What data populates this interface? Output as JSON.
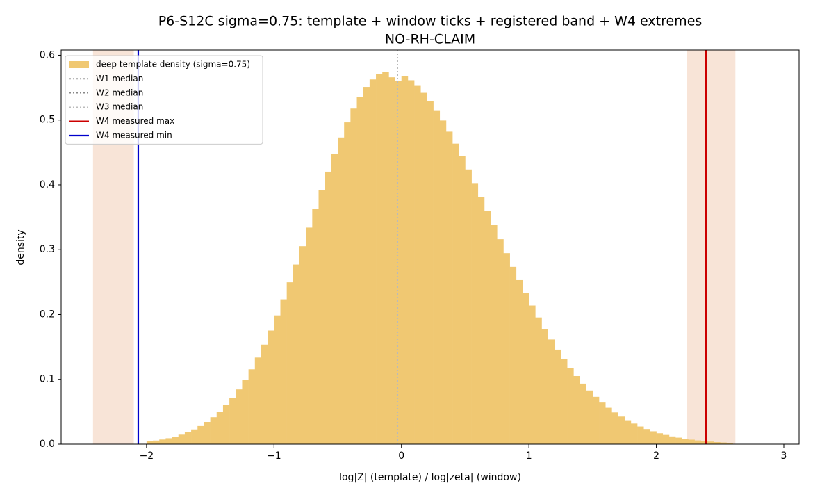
{
  "chart_data": {
    "type": "histogram",
    "title": "P6-S12C sigma=0.75: template + window ticks + registered band + W4 extremes",
    "subtitle": "NO-RH-CLAIM",
    "x_label": "log|Z| (template) / log|zeta| (window)",
    "y_label": "density",
    "name": "deep template density (sigma=0.75)",
    "color": "#f0c872",
    "bins": [
      -2.0,
      -1.95,
      -1.9,
      -1.85,
      -1.8,
      -1.75,
      -1.7,
      -1.65,
      -1.6,
      -1.55,
      -1.5,
      -1.45,
      -1.4,
      -1.35,
      -1.3,
      -1.25,
      -1.2,
      -1.15,
      -1.1,
      -1.05,
      -1.0,
      -0.95,
      -0.9,
      -0.85,
      -0.8,
      -0.75,
      -0.7,
      -0.65,
      -0.6,
      -0.55,
      -0.5,
      -0.45,
      -0.4,
      -0.35,
      -0.3,
      -0.25,
      -0.2,
      -0.15,
      -0.1,
      -0.05,
      0.0,
      0.05,
      0.1,
      0.15,
      0.2,
      0.25,
      0.3,
      0.35,
      0.4,
      0.45,
      0.5,
      0.55,
      0.6,
      0.65,
      0.7,
      0.75,
      0.8,
      0.85,
      0.9,
      0.95,
      1.0,
      1.05,
      1.1,
      1.15,
      1.2,
      1.25,
      1.3,
      1.35,
      1.4,
      1.45,
      1.5,
      1.55,
      1.6,
      1.65,
      1.7,
      1.75,
      1.8,
      1.85,
      1.9,
      1.95,
      2.0,
      2.05,
      2.1,
      2.15,
      2.2,
      2.25,
      2.3,
      2.35,
      2.4,
      2.45,
      2.5,
      2.55,
      2.6
    ],
    "values": [
      0.0044,
      0.0056,
      0.0072,
      0.0092,
      0.0117,
      0.0147,
      0.0183,
      0.0228,
      0.028,
      0.0343,
      0.0416,
      0.0502,
      0.0601,
      0.0715,
      0.0845,
      0.0991,
      0.1155,
      0.1337,
      0.1536,
      0.1753,
      0.1987,
      0.2235,
      0.2497,
      0.2771,
      0.3054,
      0.3341,
      0.3633,
      0.392,
      0.4204,
      0.4474,
      0.4731,
      0.4964,
      0.5177,
      0.536,
      0.5511,
      0.5627,
      0.5705,
      0.5745,
      0.566,
      0.56,
      0.568,
      0.5614,
      0.5527,
      0.542,
      0.5295,
      0.5151,
      0.4993,
      0.4821,
      0.4636,
      0.4441,
      0.4238,
      0.4028,
      0.3814,
      0.3597,
      0.3379,
      0.3162,
      0.2947,
      0.2736,
      0.2531,
      0.2331,
      0.2139,
      0.1955,
      0.178,
      0.1615,
      0.1459,
      0.1313,
      0.1177,
      0.1051,
      0.0934,
      0.0828,
      0.0731,
      0.0642,
      0.0562,
      0.049,
      0.0426,
      0.0369,
      0.0318,
      0.0273,
      0.0234,
      0.0199,
      0.0169,
      0.0143,
      0.012,
      0.0101,
      0.0084,
      0.007,
      0.0058,
      0.0048,
      0.004,
      0.0032,
      0.0026,
      0.0021
    ],
    "bands": [
      {
        "color": "#e8a47c",
        "range": [
          -2.42,
          -2.1
        ]
      },
      {
        "color": "#e8a47c",
        "range": [
          2.24,
          2.62
        ]
      }
    ],
    "vlines": [
      {
        "name": "W1 median",
        "color": "#444444",
        "style": "dotted",
        "x": -0.03
      },
      {
        "name": "W2 median",
        "color": "#888888",
        "style": "dotted",
        "x": -0.03
      },
      {
        "name": "W3 median",
        "color": "#bbbbbb",
        "style": "dotted",
        "x": -0.03
      },
      {
        "name": "W4 measured max",
        "color": "#cc0000",
        "style": "solid",
        "x": 2.39
      },
      {
        "name": "W4 measured min",
        "color": "#0000cc",
        "style": "solid",
        "x": -2.065
      }
    ],
    "xlim": [
      -2.67,
      3.12
    ],
    "ylim": [
      0,
      0.608
    ],
    "xticks": [
      {
        "value": -2,
        "label": "−2"
      },
      {
        "value": -1,
        "label": "−1"
      },
      0,
      1,
      2,
      3
    ],
    "yticks": [
      {
        "value": 0,
        "label": "0.0"
      },
      0.1,
      0.2,
      0.3,
      0.4,
      0.5,
      0.6
    ],
    "legend": "upper left"
  }
}
